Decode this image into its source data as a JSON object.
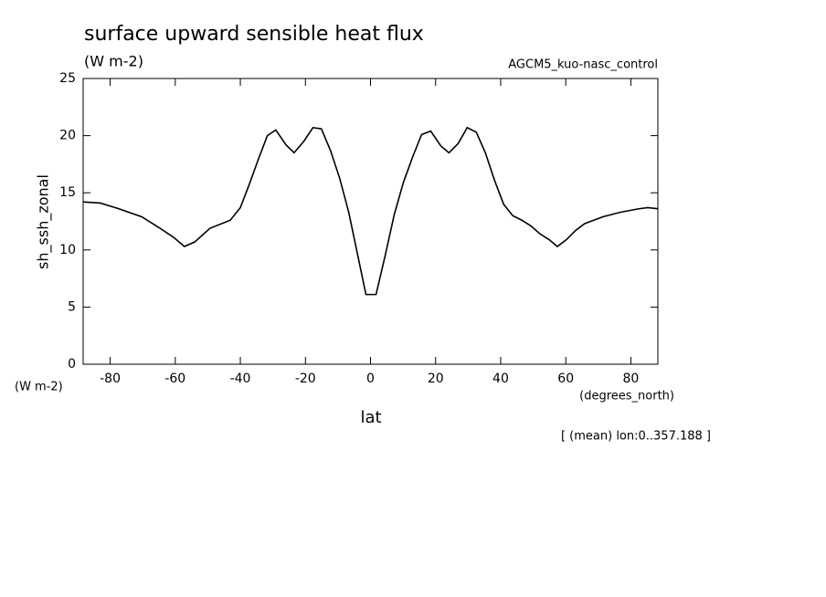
{
  "chart_data": {
    "type": "line",
    "title": "surface upward sensible heat flux",
    "subtitle": "(W m-2)",
    "dataset_label": "AGCM5_kuo-nasc_control",
    "y_label": "sh_ssh_zonal",
    "y_units": "(W m-2)",
    "x_label": "lat",
    "x_units": "(degrees_north)",
    "footnote": "[ (mean) lon:0..357.188 ]",
    "xlim": [
      -88.3,
      88.3
    ],
    "ylim": [
      0,
      25
    ],
    "xticks": [
      -80,
      -60,
      -40,
      -20,
      0,
      20,
      40,
      60,
      80
    ],
    "yticks": [
      0,
      5,
      10,
      15,
      20,
      25
    ],
    "grid": false,
    "x": [
      -88.3,
      -83,
      -77.3,
      -70.3,
      -64.7,
      -60.5,
      -57.2,
      -54,
      -49.3,
      -43.1,
      -40,
      -37.3,
      -34.5,
      -31.7,
      -29.1,
      -26,
      -23.5,
      -20.5,
      -17.7,
      -15.1,
      -12.3,
      -9.5,
      -6.7,
      -3.9,
      -1.4,
      1.7,
      4.5,
      7.3,
      10.1,
      12.9,
      15.7,
      18.5,
      21.6,
      24.1,
      26.9,
      29.7,
      32.5,
      35.3,
      38.1,
      40.9,
      43.7,
      46.5,
      49.3,
      52.1,
      54.9,
      57.4,
      60.2,
      63,
      65.8,
      71.4,
      76.8,
      82.4,
      85.2,
      88.3
    ],
    "series": [
      {
        "name": "sh_ssh_zonal",
        "color": "#000000",
        "values": [
          14.2,
          14.1,
          13.6,
          12.9,
          11.9,
          11.1,
          10.3,
          10.7,
          11.9,
          12.6,
          13.7,
          15.7,
          17.9,
          20.0,
          20.5,
          19.2,
          18.5,
          19.5,
          20.7,
          20.6,
          18.7,
          16.3,
          13.3,
          9.5,
          6.1,
          6.1,
          9.5,
          13.1,
          15.9,
          18.1,
          20.1,
          20.4,
          19.1,
          18.5,
          19.3,
          20.7,
          20.3,
          18.5,
          16.1,
          14.0,
          13.0,
          12.6,
          12.1,
          11.4,
          10.9,
          10.3,
          10.9,
          11.7,
          12.3,
          12.9,
          13.3,
          13.6,
          13.7,
          13.6
        ]
      }
    ]
  }
}
